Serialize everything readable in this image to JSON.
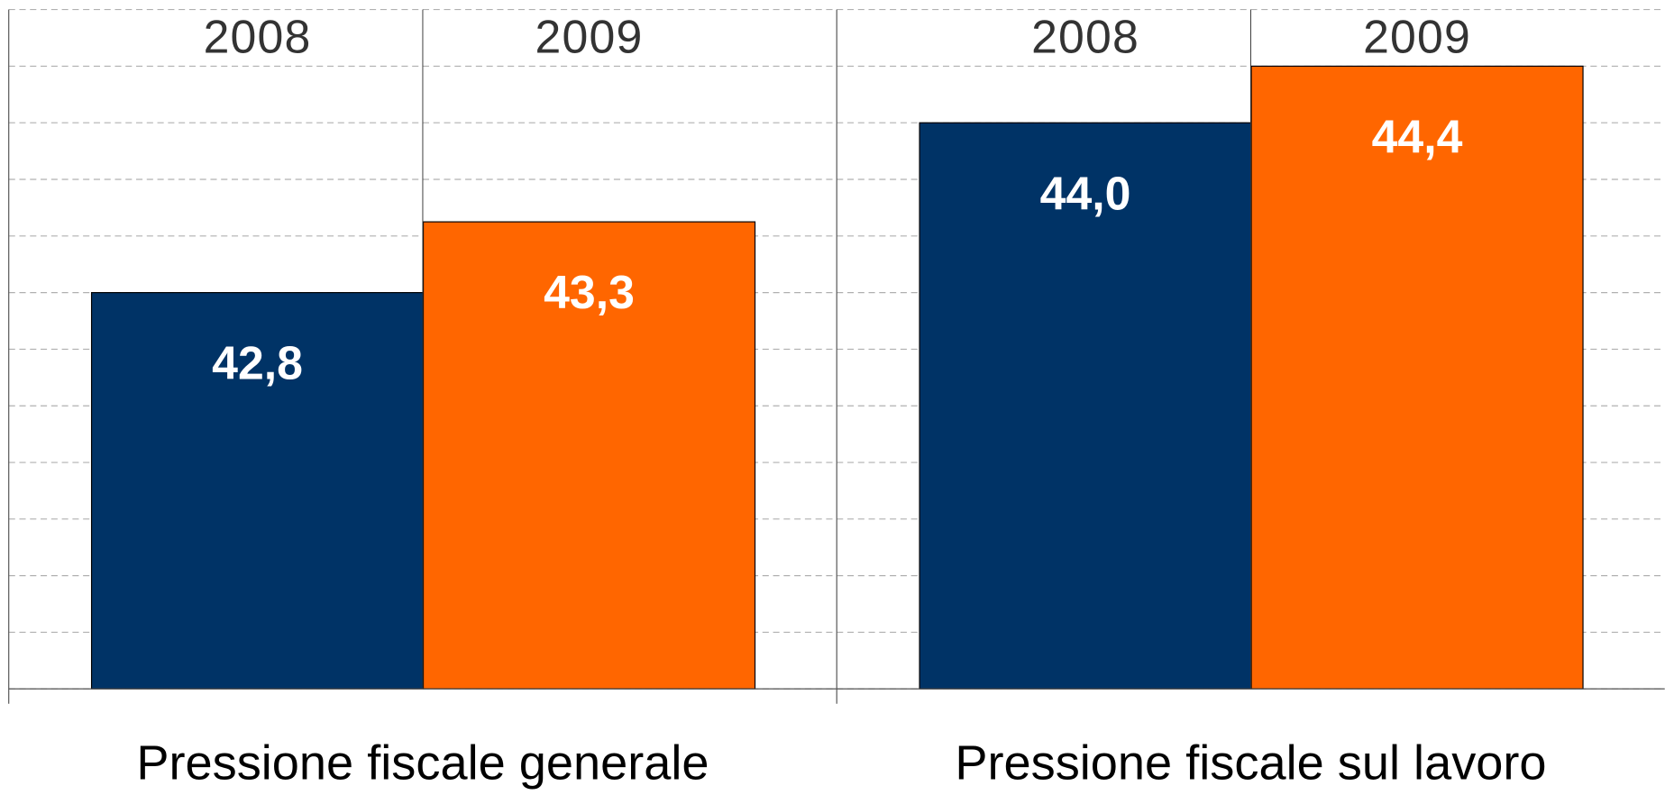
{
  "chart_data": {
    "type": "bar",
    "categories": [
      "Pressione fiscale generale",
      "Pressione fiscale sul lavoro"
    ],
    "series": [
      {
        "name": "2008",
        "color": "#003366",
        "values": [
          42.8,
          44.0
        ],
        "value_labels": [
          "42,8",
          "44,0"
        ]
      },
      {
        "name": "2009",
        "color": "#ff6600",
        "values": [
          43.3,
          44.4
        ],
        "value_labels": [
          "43,3",
          "44,4"
        ]
      }
    ],
    "ylim": [
      40,
      44.8
    ],
    "yticks": [
      40,
      40.4,
      40.8,
      41.2,
      41.6,
      42,
      42.4,
      42.8,
      43.2,
      43.6,
      44,
      44.4,
      44.8
    ],
    "grid": true
  }
}
